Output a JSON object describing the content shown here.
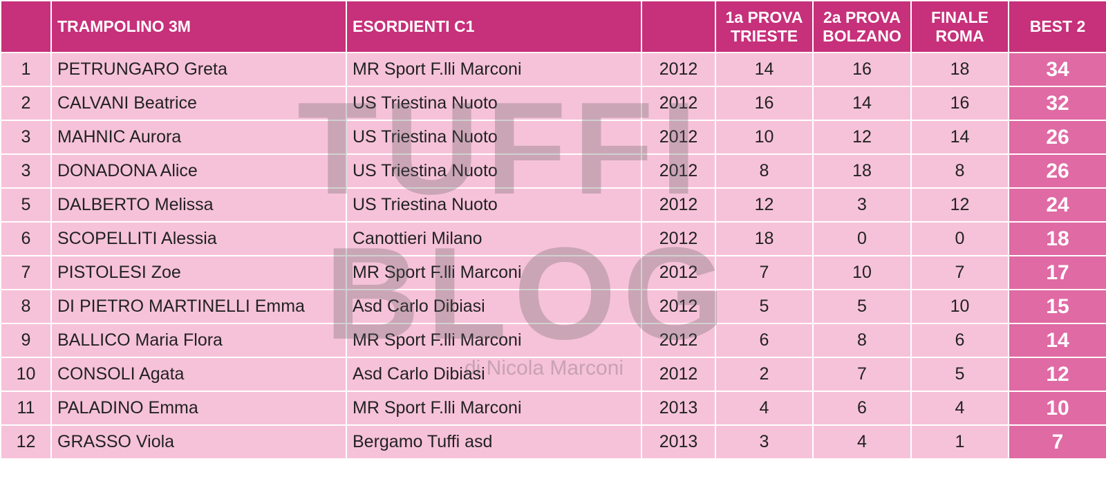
{
  "header": {
    "event": "TRAMPOLINO 3M",
    "category": "ESORDIENTI C1",
    "stages": [
      [
        "1a PROVA",
        "TRIESTE"
      ],
      [
        "2a PROVA",
        "BOLZANO"
      ],
      [
        "FINALE",
        "ROMA"
      ]
    ],
    "best": "BEST 2"
  },
  "rows": [
    [
      1,
      "PETRUNGARO Greta",
      "MR Sport F.lli Marconi",
      2012,
      14,
      16,
      18,
      34
    ],
    [
      2,
      "CALVANI Beatrice",
      "US Triestina Nuoto",
      2012,
      16,
      14,
      16,
      32
    ],
    [
      3,
      "MAHNIC Aurora",
      "US Triestina Nuoto",
      2012,
      10,
      12,
      14,
      26
    ],
    [
      3,
      "DONADONA Alice",
      "US Triestina Nuoto",
      2012,
      8,
      18,
      8,
      26
    ],
    [
      5,
      "DALBERTO Melissa",
      "US Triestina Nuoto",
      2012,
      12,
      3,
      12,
      24
    ],
    [
      6,
      "SCOPELLITI Alessia",
      "Canottieri Milano",
      2012,
      18,
      0,
      0,
      18
    ],
    [
      7,
      "PISTOLESI Zoe",
      "MR Sport F.lli Marconi",
      2012,
      7,
      10,
      7,
      17
    ],
    [
      8,
      "DI PIETRO MARTINELLI Emma",
      "Asd Carlo Dibiasi",
      2012,
      5,
      5,
      10,
      15
    ],
    [
      9,
      "BALLICO Maria Flora",
      "MR Sport F.lli Marconi",
      2012,
      6,
      8,
      6,
      14
    ],
    [
      10,
      "CONSOLI Agata",
      "Asd Carlo Dibiasi",
      2012,
      2,
      7,
      5,
      12
    ],
    [
      11,
      "PALADINO Emma",
      "MR Sport F.lli Marconi",
      2013,
      4,
      6,
      4,
      10
    ],
    [
      12,
      "GRASSO Viola",
      "Bergamo Tuffi asd",
      2013,
      3,
      4,
      1,
      7
    ]
  ],
  "watermark": {
    "line1": "TUFFI",
    "line2": "BLOG",
    "byline": "di Nicola Marconi"
  }
}
